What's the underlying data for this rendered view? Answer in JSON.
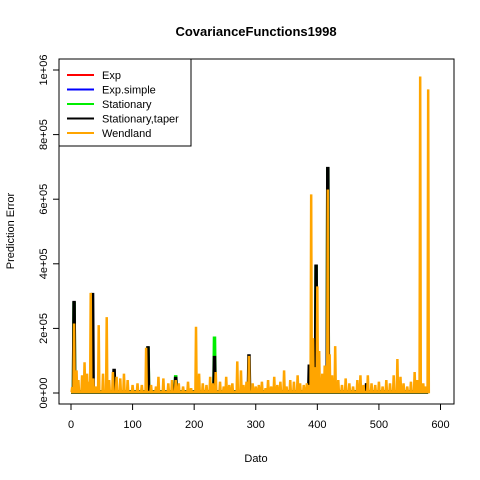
{
  "chart_data": {
    "type": "line",
    "title": "CovarianceFunctions1998",
    "xlabel": "Dato",
    "ylabel": "Prediction Error",
    "xlim": [
      0,
      600
    ],
    "ylim": [
      0,
      1000000
    ],
    "x_ticks": [
      0,
      100,
      200,
      300,
      400,
      500,
      600
    ],
    "x_tick_labels": [
      "0",
      "100",
      "200",
      "300",
      "400",
      "500",
      "600"
    ],
    "y_ticks": [
      0,
      200000,
      400000,
      600000,
      800000,
      1000000
    ],
    "y_tick_labels": [
      "0e+00",
      "2e+05",
      "4e+05",
      "6e+05",
      "8e+05",
      "1e+06"
    ],
    "grid": false,
    "legend_position": "top-left",
    "baseline": 3000,
    "series": [
      {
        "name": "Exp",
        "color": "#ff0000",
        "spikes": [
          [
            5,
            280000
          ],
          [
            125,
            142000
          ],
          [
            233,
            112000
          ],
          [
            398,
            395000
          ],
          [
            417,
            695000
          ]
        ]
      },
      {
        "name": "Exp.simple",
        "color": "#0000ff",
        "spikes": [
          [
            5,
            280000
          ],
          [
            125,
            142000
          ],
          [
            233,
            112000
          ],
          [
            398,
            395000
          ],
          [
            417,
            695000
          ]
        ]
      },
      {
        "name": "Stationary",
        "color": "#00ee00",
        "spikes": [
          [
            5,
            282000
          ],
          [
            125,
            143000
          ],
          [
            170,
            55000
          ],
          [
            233,
            175000
          ],
          [
            398,
            396000
          ],
          [
            417,
            698000
          ]
        ]
      },
      {
        "name": "Stationary,taper",
        "color": "#000000",
        "spikes": [
          [
            5,
            285000
          ],
          [
            35,
            310000
          ],
          [
            70,
            75000
          ],
          [
            125,
            145000
          ],
          [
            170,
            50000
          ],
          [
            233,
            115000
          ],
          [
            289,
            120000
          ],
          [
            387,
            88000
          ],
          [
            398,
            398000
          ],
          [
            417,
            700000
          ],
          [
            480,
            30000
          ],
          [
            565,
            40000
          ]
        ]
      },
      {
        "name": "Wendland",
        "color": "#ffa500",
        "spikes": [
          [
            2,
            18000
          ],
          [
            5,
            215000
          ],
          [
            9,
            70000
          ],
          [
            12,
            40000
          ],
          [
            18,
            55000
          ],
          [
            22,
            95000
          ],
          [
            26,
            60000
          ],
          [
            29,
            35000
          ],
          [
            32,
            310000
          ],
          [
            36,
            45000
          ],
          [
            40,
            20000
          ],
          [
            45,
            210000
          ],
          [
            52,
            60000
          ],
          [
            58,
            235000
          ],
          [
            62,
            40000
          ],
          [
            68,
            65000
          ],
          [
            74,
            50000
          ],
          [
            80,
            45000
          ],
          [
            86,
            60000
          ],
          [
            92,
            40000
          ],
          [
            100,
            25000
          ],
          [
            108,
            30000
          ],
          [
            115,
            25000
          ],
          [
            122,
            140000
          ],
          [
            130,
            25000
          ],
          [
            138,
            20000
          ],
          [
            142,
            50000
          ],
          [
            150,
            45000
          ],
          [
            158,
            30000
          ],
          [
            164,
            40000
          ],
          [
            170,
            40000
          ],
          [
            175,
            30000
          ],
          [
            182,
            20000
          ],
          [
            190,
            35000
          ],
          [
            195,
            15000
          ],
          [
            203,
            205000
          ],
          [
            208,
            60000
          ],
          [
            214,
            30000
          ],
          [
            220,
            25000
          ],
          [
            226,
            50000
          ],
          [
            230,
            30000
          ],
          [
            235,
            65000
          ],
          [
            242,
            35000
          ],
          [
            248,
            20000
          ],
          [
            252,
            50000
          ],
          [
            257,
            25000
          ],
          [
            262,
            30000
          ],
          [
            270,
            98000
          ],
          [
            276,
            70000
          ],
          [
            280,
            25000
          ],
          [
            285,
            35000
          ],
          [
            289,
            115000
          ],
          [
            295,
            30000
          ],
          [
            300,
            20000
          ],
          [
            305,
            25000
          ],
          [
            310,
            35000
          ],
          [
            316,
            15000
          ],
          [
            320,
            40000
          ],
          [
            325,
            20000
          ],
          [
            330,
            50000
          ],
          [
            335,
            25000
          ],
          [
            340,
            35000
          ],
          [
            346,
            70000
          ],
          [
            350,
            20000
          ],
          [
            356,
            40000
          ],
          [
            362,
            35000
          ],
          [
            368,
            55000
          ],
          [
            372,
            30000
          ],
          [
            378,
            25000
          ],
          [
            383,
            30000
          ],
          [
            387,
            25000
          ],
          [
            390,
            615000
          ],
          [
            393,
            170000
          ],
          [
            396,
            80000
          ],
          [
            400,
            330000
          ],
          [
            403,
            130000
          ],
          [
            408,
            60000
          ],
          [
            412,
            85000
          ],
          [
            417,
            630000
          ],
          [
            420,
            120000
          ],
          [
            424,
            55000
          ],
          [
            429,
            145000
          ],
          [
            434,
            40000
          ],
          [
            440,
            25000
          ],
          [
            446,
            45000
          ],
          [
            452,
            30000
          ],
          [
            458,
            20000
          ],
          [
            465,
            40000
          ],
          [
            470,
            55000
          ],
          [
            475,
            25000
          ],
          [
            482,
            55000
          ],
          [
            488,
            30000
          ],
          [
            494,
            25000
          ],
          [
            500,
            35000
          ],
          [
            506,
            20000
          ],
          [
            512,
            40000
          ],
          [
            518,
            30000
          ],
          [
            524,
            55000
          ],
          [
            530,
            105000
          ],
          [
            535,
            50000
          ],
          [
            540,
            30000
          ],
          [
            546,
            20000
          ],
          [
            552,
            35000
          ],
          [
            558,
            65000
          ],
          [
            562,
            40000
          ],
          [
            567,
            980000
          ],
          [
            572,
            30000
          ],
          [
            576,
            20000
          ],
          [
            580,
            940000
          ]
        ]
      }
    ]
  }
}
